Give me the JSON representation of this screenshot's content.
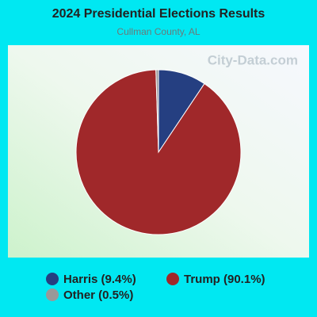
{
  "chart_data": {
    "type": "pie",
    "title": "2024 Presidential Elections Results",
    "subtitle": "Cullman County, AL",
    "watermark": "City-Data.com",
    "categories": [
      "Harris (9.4%)",
      "Trump (90.1%)",
      "Other (0.5%)"
    ],
    "values": [
      9.4,
      90.1,
      0.5
    ],
    "colors": [
      "#253f81",
      "#a0282a",
      "#999999"
    ]
  }
}
